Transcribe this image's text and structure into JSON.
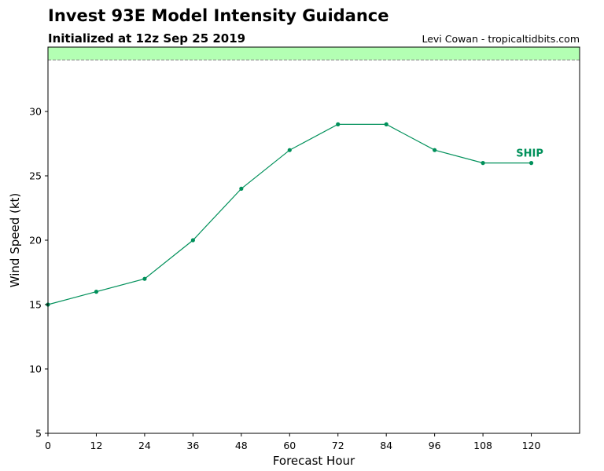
{
  "header": {
    "title": "Invest 93E Model Intensity Guidance",
    "subtitle": "Initialized at 12z Sep 25 2019",
    "credit": "Levi Cowan - tropicaltidbits.com"
  },
  "chart_data": {
    "type": "line",
    "xlabel": "Forecast Hour",
    "ylabel": "Wind Speed (kt)",
    "xlim": [
      0,
      132
    ],
    "ylim": [
      5,
      35
    ],
    "x_ticks": [
      0,
      12,
      24,
      36,
      48,
      60,
      72,
      84,
      96,
      108,
      120
    ],
    "y_ticks": [
      5,
      10,
      15,
      20,
      25,
      30
    ],
    "threshold_band": {
      "from": 34,
      "to": 35,
      "color": "#b3ffb3",
      "line_color": "#808080"
    },
    "series": [
      {
        "name": "SHIP",
        "color": "#00905a",
        "x": [
          0,
          12,
          24,
          36,
          48,
          60,
          72,
          84,
          96,
          108,
          120
        ],
        "y": [
          15,
          16,
          17,
          20,
          24,
          27,
          29,
          29,
          27,
          26,
          26
        ]
      }
    ]
  }
}
